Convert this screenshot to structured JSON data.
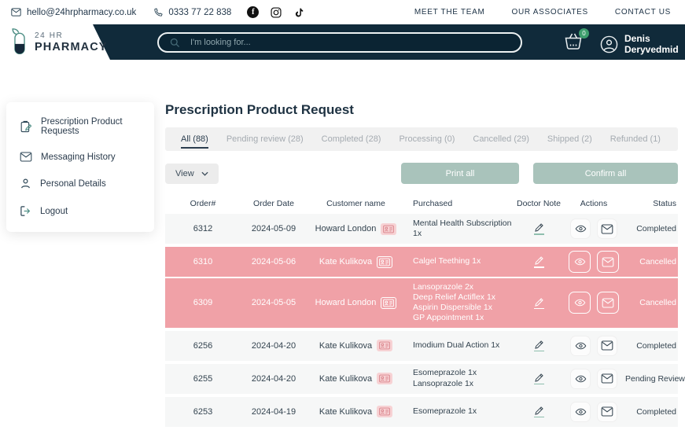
{
  "topbar": {
    "email": "hello@24hrpharmacy.co.uk",
    "phone": "0333 77 22 838",
    "social_icons": [
      "facebook-icon",
      "instagram-icon",
      "tiktok-icon"
    ],
    "links": [
      "MEET THE TEAM",
      "OUR ASSOCIATES",
      "CONTACT US"
    ]
  },
  "header": {
    "logo_line1": "24 HR",
    "logo_line2": "PHARMACY",
    "search_placeholder": "I'm looking for...",
    "cart_count": "0",
    "user_name": "Denis Deryvedmid"
  },
  "sidebar": {
    "items": [
      {
        "id": "prescription-product-requests",
        "icon": "prescription-clipboard-icon",
        "label": "Prescription Product Requests"
      },
      {
        "id": "messaging-history",
        "icon": "envelope-icon",
        "label": "Messaging History"
      },
      {
        "id": "personal-details",
        "icon": "person-icon",
        "label": "Personal Details"
      },
      {
        "id": "logout",
        "icon": "logout-door-icon",
        "label": "Logout"
      }
    ]
  },
  "main": {
    "title": "Prescription Product Request",
    "tabs": [
      {
        "label": "All (88)",
        "active": true
      },
      {
        "label": "Pending review (28)",
        "active": false
      },
      {
        "label": "Completed (28)",
        "active": false
      },
      {
        "label": "Processing (0)",
        "active": false
      },
      {
        "label": "Cancelled (29)",
        "active": false
      },
      {
        "label": "Shipped (2)",
        "active": false
      },
      {
        "label": "Refunded (1)",
        "active": false
      }
    ],
    "view_button": "View",
    "print_all": "Print all",
    "confirm_all": "Confirm all",
    "table": {
      "columns": [
        "Order#",
        "Order Date",
        "Customer name",
        "Purchased",
        "Doctor Note",
        "Actions",
        "Status"
      ],
      "row_action_icons": [
        "eye-icon",
        "envelope-icon"
      ],
      "rows": [
        {
          "order": "6312",
          "date": "2024-05-09",
          "customer": "Howard London",
          "purchased": [
            "Mental Health Subscription 1x"
          ],
          "status": "Completed",
          "cancelled": false
        },
        {
          "order": "6310",
          "date": "2024-05-06",
          "customer": "Kate Kulikova",
          "purchased": [
            "Calgel Teething 1x"
          ],
          "status": "Cancelled",
          "cancelled": true
        },
        {
          "order": "6309",
          "date": "2024-05-05",
          "customer": "Howard London",
          "purchased": [
            "Lansoprazole 2x",
            "Deep Relief Actiflex 1x",
            "Aspirin Dispersible 1x",
            "GP Appointment 1x"
          ],
          "status": "Cancelled",
          "cancelled": true
        },
        {
          "order": "6256",
          "date": "2024-04-20",
          "customer": "Kate Kulikova",
          "purchased": [
            "Imodium Dual Action 1x"
          ],
          "status": "Completed",
          "cancelled": false
        },
        {
          "order": "6255",
          "date": "2024-04-20",
          "customer": "Kate Kulikova",
          "purchased": [
            "Esomeprazole 1x",
            "Lansoprazole 1x"
          ],
          "status": "Pending Review",
          "cancelled": false
        },
        {
          "order": "6253",
          "date": "2024-04-19",
          "customer": "Kate Kulikova",
          "purchased": [
            "Esomeprazole 1x"
          ],
          "status": "Completed",
          "cancelled": false
        }
      ]
    }
  },
  "colors": {
    "header_navy": "#102a3a",
    "accent_teal": "#4e8f85",
    "cancelled_pink": "#f0a1a7",
    "button_sage": "#a9c3bb",
    "cart_badge_green": "#3d9e6d"
  }
}
